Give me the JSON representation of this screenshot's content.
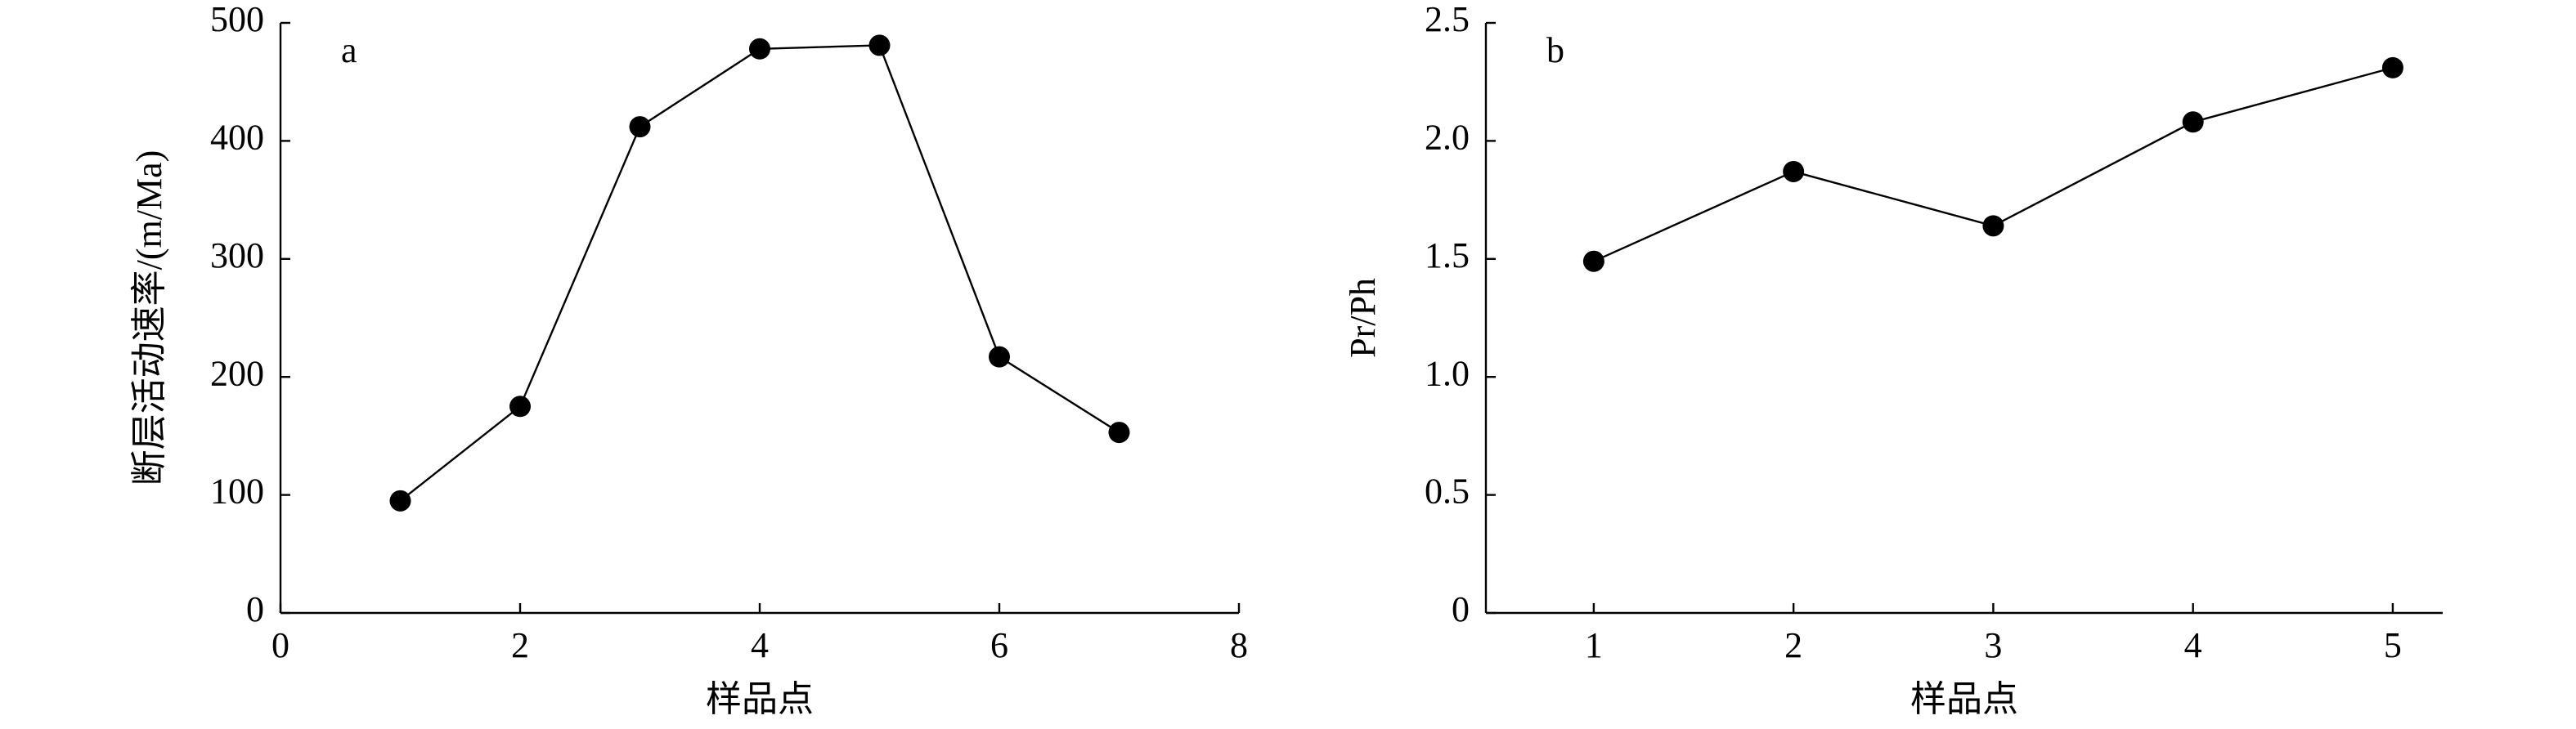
{
  "chart_data": [
    {
      "type": "line",
      "label": "a",
      "x_label": "样品点",
      "y_label": "断层活动速率/(m/Ma)",
      "x": [
        1,
        2,
        3,
        4,
        5,
        6,
        7
      ],
      "values": [
        95,
        175,
        412,
        478,
        481,
        217,
        153
      ],
      "color": "#000000",
      "xlim": [
        0,
        8
      ],
      "xticks": [
        0,
        2,
        4,
        6,
        8
      ],
      "ylim": [
        0,
        500
      ],
      "yticks": [
        0,
        100,
        200,
        300,
        400,
        500
      ]
    },
    {
      "type": "line",
      "label": "b",
      "x_label": "样品点",
      "y_label": "Pr/Ph",
      "x": [
        1,
        2,
        3,
        4,
        5
      ],
      "values": [
        1.49,
        1.87,
        1.64,
        2.08,
        2.31
      ],
      "color": "#000000",
      "xlim": [
        0.46,
        5.25
      ],
      "xticks": [
        1,
        2,
        3,
        4,
        5
      ],
      "ylim": [
        0,
        2.5
      ],
      "yticks": [
        0,
        0.5,
        {
          "value": 1,
          "label": "1.0"
        },
        1.5,
        {
          "value": 2,
          "label": "2.0"
        },
        2.5
      ]
    }
  ]
}
